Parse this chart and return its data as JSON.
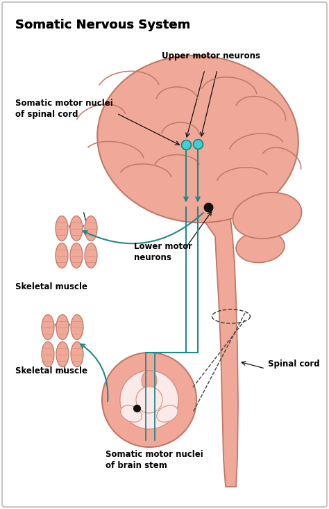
{
  "title": "Somatic Nervous System",
  "bg_color": "#ffffff",
  "border_color": "#bbbbbb",
  "brain_color": "#F0A898",
  "brain_outline": "#C07868",
  "neuron_cyan": "#40D0D0",
  "neuron_black": "#111111",
  "nerve_line_color": "#208888",
  "arrow_color": "#111111",
  "dashed_color": "#444444",
  "muscle_color": "#F0A898",
  "labels": {
    "title": "Somatic Nervous System",
    "upper_motor": "Upper motor neurons",
    "somatic_spinal": "Somatic motor nuclei\nof spinal cord",
    "lower_motor": "Lower motor\nneurons",
    "skeletal_top": "Skeletal muscle",
    "skeletal_bottom": "Skeletal muscle",
    "somatic_brainstem": "Somatic motor nuclei\nof brain stem",
    "spinal_cord": "Spinal cord"
  },
  "title_fontsize": 13,
  "label_fontsize": 8.5
}
